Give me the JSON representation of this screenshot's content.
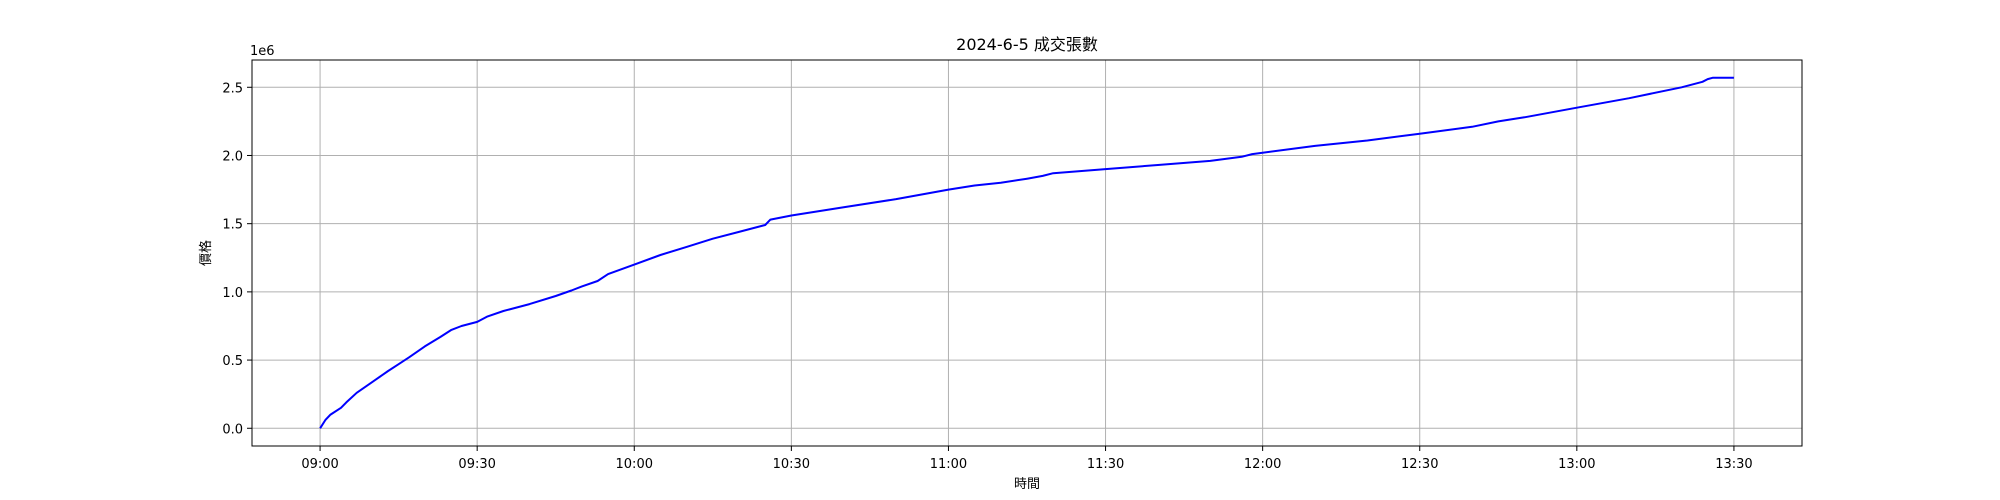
{
  "chart_data": {
    "type": "line",
    "title": "2024-6-5 成交張數",
    "xlabel": "時間",
    "ylabel": "價格",
    "y_offset_text": "1e6",
    "x_tick_labels": [
      "09:00",
      "09:30",
      "10:00",
      "10:30",
      "11:00",
      "11:30",
      "12:00",
      "12:30",
      "13:00",
      "13:30"
    ],
    "y_tick_labels": [
      "0.0",
      "0.5",
      "1.0",
      "1.5",
      "2.0",
      "2.5"
    ],
    "y_ticks": [
      0,
      0.5,
      1.0,
      1.5,
      2.0,
      2.5
    ],
    "xlim": [
      "08:47",
      "13:43"
    ],
    "ylim": [
      -0.13,
      2.7
    ],
    "grid": true,
    "series": [
      {
        "color": "#0000ff",
        "x": [
          "09:00",
          "09:01",
          "09:02",
          "09:04",
          "09:05",
          "09:07",
          "09:10",
          "09:13",
          "09:15",
          "09:17",
          "09:20",
          "09:23",
          "09:25",
          "09:27",
          "09:30",
          "09:32",
          "09:35",
          "09:40",
          "09:45",
          "09:48",
          "09:50",
          "09:53",
          "09:55",
          "10:00",
          "10:05",
          "10:10",
          "10:15",
          "10:20",
          "10:25",
          "10:26",
          "10:30",
          "10:40",
          "10:50",
          "11:00",
          "11:05",
          "11:10",
          "11:15",
          "11:18",
          "11:20",
          "11:30",
          "11:40",
          "11:50",
          "11:56",
          "11:58",
          "12:00",
          "12:10",
          "12:20",
          "12:30",
          "12:40",
          "12:45",
          "12:50",
          "13:00",
          "13:10",
          "13:20",
          "13:24",
          "13:25",
          "13:26",
          "13:30"
        ],
        "values": [
          0.0,
          0.06,
          0.1,
          0.15,
          0.19,
          0.26,
          0.34,
          0.42,
          0.47,
          0.52,
          0.6,
          0.67,
          0.72,
          0.75,
          0.78,
          0.82,
          0.86,
          0.91,
          0.97,
          1.01,
          1.04,
          1.08,
          1.13,
          1.2,
          1.27,
          1.33,
          1.39,
          1.44,
          1.49,
          1.53,
          1.56,
          1.62,
          1.68,
          1.75,
          1.78,
          1.8,
          1.83,
          1.85,
          1.87,
          1.9,
          1.93,
          1.96,
          1.99,
          2.01,
          2.02,
          2.07,
          2.11,
          2.16,
          2.21,
          2.25,
          2.28,
          2.35,
          2.42,
          2.5,
          2.54,
          2.56,
          2.57,
          2.57
        ]
      }
    ]
  }
}
